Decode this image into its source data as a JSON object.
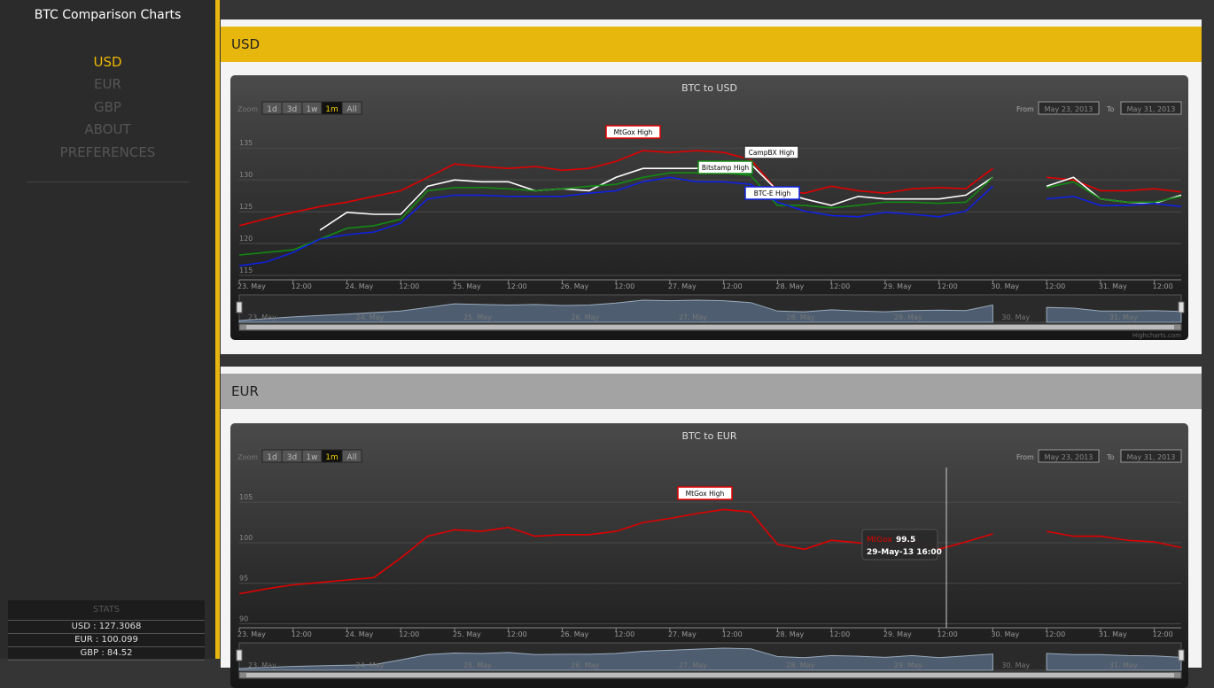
{
  "sidebar": {
    "title": "BTC Comparison Charts",
    "nav": [
      "USD",
      "EUR",
      "GBP",
      "ABOUT",
      "PREFERENCES"
    ],
    "stats": {
      "title": "STATS",
      "rows": [
        "USD : 127.3068",
        "EUR : 100.099",
        "GBP : 84.52"
      ]
    }
  },
  "panels": [
    {
      "heading": "USD",
      "chart_data": {
        "type": "line",
        "title": "BTC to USD",
        "zoom_label": "Zoom",
        "zoom_buttons": [
          "1d",
          "3d",
          "1w",
          "1m",
          "All"
        ],
        "zoom_selected": "1m",
        "from_label": "From",
        "from": "May 23, 2013",
        "to_label": "To",
        "to": "May 31, 2013",
        "categories": [
          "23. May",
          null,
          "12:00",
          null,
          "24. May",
          null,
          "12:00",
          null,
          "25. May",
          null,
          "12:00",
          null,
          "26. May",
          null,
          "12:00",
          null,
          "27. May",
          null,
          "12:00",
          null,
          "28. May",
          null,
          "12:00",
          null,
          "29. May",
          null,
          "12:00",
          null,
          "30. May",
          null,
          "12:00",
          null,
          "31. May",
          null,
          "12:00",
          null
        ],
        "ylim": [
          114.3,
          136.7
        ],
        "yticks": [
          115,
          120,
          125,
          130,
          135
        ],
        "grid": true,
        "series": [
          {
            "color": "#e00000",
            "flag": "MtGox High",
            "values": [
              122.8,
              123.9,
              124.9,
              125.8,
              126.5,
              127.4,
              128.3,
              130.4,
              132.5,
              132.1,
              131.8,
              132.1,
              131.5,
              131.8,
              132.9,
              134.6,
              134.3,
              134.6,
              134.3,
              133.2,
              128.3,
              127.9,
              129,
              128.3,
              127.9,
              128.6,
              128.8,
              128.6,
              131.8,
              null,
              130.4,
              130,
              128.3,
              128.3,
              128.6,
              128.1
            ]
          },
          {
            "color": "#ffffff",
            "flag": "CampBX High",
            "values": [
              null,
              null,
              null,
              122.1,
              124.9,
              124.6,
              124.6,
              129,
              130,
              129.7,
              129.7,
              128.3,
              128.6,
              128.3,
              130.4,
              131.8,
              131.8,
              131.8,
              132.5,
              132.5,
              128.3,
              127,
              126,
              127.4,
              127,
              127,
              127,
              127.6,
              130.4,
              null,
              129,
              130.4,
              127,
              126.5,
              126.3,
              127.6
            ]
          },
          {
            "color": "#138a13",
            "flag": "Bitstamp High",
            "values": [
              118.2,
              118.6,
              119,
              120.7,
              122.4,
              122.8,
              123.8,
              128.3,
              128.8,
              128.8,
              128.6,
              128.3,
              128.6,
              129,
              129.3,
              130.4,
              131.1,
              131.1,
              131.1,
              130.7,
              126,
              126,
              125.6,
              126,
              126.5,
              126.5,
              126.3,
              126.5,
              130.4,
              null,
              128.8,
              129.7,
              127,
              126.5,
              126.5,
              127.4
            ]
          },
          {
            "color": "#1020e0",
            "flag": "BTC-E High",
            "values": [
              116.5,
              117.1,
              118.6,
              120.7,
              121.4,
              121.8,
              123.2,
              127,
              127.6,
              127.6,
              127.4,
              127.4,
              127.4,
              127.9,
              128.3,
              129.7,
              130.4,
              129.7,
              129.7,
              129.3,
              126.5,
              125.1,
              124.4,
              124.2,
              124.9,
              124.6,
              124.2,
              125.1,
              129,
              null,
              127,
              127.4,
              126,
              126,
              126.3,
              125.8
            ]
          }
        ],
        "credit": "Highcharts.com"
      }
    },
    {
      "heading": "EUR",
      "chart_data": {
        "type": "line",
        "title": "BTC to EUR",
        "zoom_label": "Zoom",
        "zoom_buttons": [
          "1d",
          "3d",
          "1w",
          "1m",
          "All"
        ],
        "zoom_selected": "1m",
        "from_label": "From",
        "from": "May 23, 2013",
        "to_label": "To",
        "to": "May 31, 2013",
        "categories": [
          "23. May",
          null,
          "12:00",
          null,
          "24. May",
          null,
          "12:00",
          null,
          "25. May",
          null,
          "12:00",
          null,
          "26. May",
          null,
          "12:00",
          null,
          "27. May",
          null,
          "12:00",
          null,
          "28. May",
          null,
          "12:00",
          null,
          "29. May",
          null,
          "12:00",
          null,
          "30. May",
          null,
          "12:00",
          null,
          "31. May",
          null,
          "12:00",
          null
        ],
        "ylim": [
          89.5,
          107.1
        ],
        "yticks": [
          90,
          95,
          100,
          105
        ],
        "grid": true,
        "series": [
          {
            "name": "MtGox",
            "color": "#e00000",
            "flag": "MtGox High",
            "values": [
              93.7,
              94.3,
              94.8,
              95.1,
              95.4,
              95.7,
              98.1,
              100.8,
              101.6,
              101.4,
              101.9,
              100.8,
              101,
              101,
              101.4,
              102.5,
              103,
              103.6,
              104.1,
              103.8,
              99.8,
              99.2,
              100.3,
              100,
              99.4,
              100.3,
              99.2,
              100.1,
              101.1,
              null,
              101.4,
              100.8,
              100.8,
              100.3,
              100.1,
              99.4
            ]
          }
        ],
        "tooltip": {
          "value": 99.5,
          "label": "29-May-13 16:00"
        }
      }
    }
  ]
}
